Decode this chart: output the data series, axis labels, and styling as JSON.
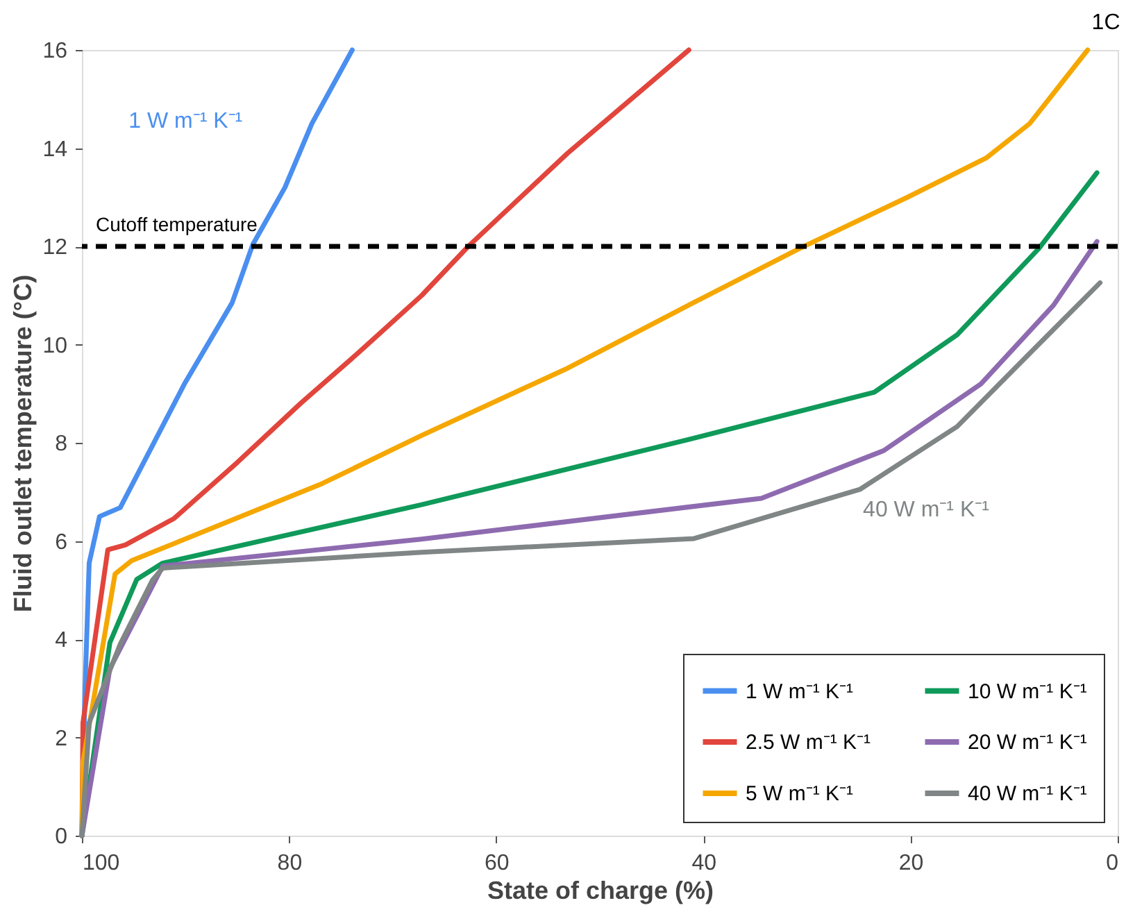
{
  "chart_data": {
    "type": "line",
    "title": "1C",
    "xlabel": "State of charge (%)",
    "ylabel": "Fluid outlet temperature (°C)",
    "xlim": [
      100,
      0
    ],
    "ylim": [
      0,
      16
    ],
    "xticks": [
      100,
      80,
      60,
      40,
      20,
      0
    ],
    "yticks": [
      0,
      2,
      4,
      6,
      8,
      10,
      12,
      14,
      16
    ],
    "grid": false,
    "legend": "bottom right",
    "line_style": "solid",
    "marker": "none",
    "series": [
      {
        "name": "1 W m⁻¹ K⁻¹",
        "color": "#4a8ff0",
        "x": [
          100,
          99.7,
          99.3,
          98.3,
          96.3,
          90.1,
          85.5,
          83.5,
          80.4,
          77.8,
          73.9
        ],
        "values": [
          0,
          3,
          5.55,
          6.5,
          6.68,
          9.2,
          10.85,
          12.04,
          13.2,
          14.5,
          16
        ]
      },
      {
        "name": "2.5 W m⁻¹ K⁻¹",
        "color": "#e2453c",
        "x": [
          100,
          99.9,
          97.5,
          95.8,
          91.1,
          85,
          78.9,
          73.7,
          67.2,
          62.7,
          53.1,
          41.4
        ],
        "values": [
          0,
          2.3,
          5.82,
          5.92,
          6.46,
          7.6,
          8.8,
          9.76,
          11.0,
          12.0,
          13.9,
          16
        ]
      },
      {
        "name": "5 W m⁻¹ K⁻¹",
        "color": "#f5a700",
        "x": [
          100,
          99.9,
          96.8,
          95.2,
          87,
          76.8,
          67.2,
          53.1,
          40.9,
          30.6,
          20.3,
          12.7,
          8.5,
          2.9
        ],
        "values": [
          0,
          1.5,
          5.33,
          5.6,
          6.3,
          7.17,
          8.15,
          9.52,
          10.86,
          11.97,
          13.0,
          13.8,
          14.5,
          16
        ]
      },
      {
        "name": "10 W m⁻¹ K⁻¹",
        "color": "#0f9a5a",
        "x": [
          100,
          97.3,
          94.7,
          92.2,
          81.9,
          67.2,
          41.4,
          23.5,
          15.5,
          7.6,
          2.0
        ],
        "values": [
          0,
          3.93,
          5.22,
          5.55,
          6.04,
          6.74,
          8.07,
          9.03,
          10.2,
          11.96,
          13.5
        ]
      },
      {
        "name": "20 W m⁻¹ K⁻¹",
        "color": "#8e6bb0",
        "x": [
          100,
          97.3,
          92.2,
          67.2,
          34.4,
          22.6,
          13.2,
          6.2,
          2.0
        ],
        "values": [
          0,
          3.4,
          5.49,
          6.04,
          6.87,
          7.84,
          9.2,
          10.8,
          12.1
        ]
      },
      {
        "name": "40 W m⁻¹ K⁻¹",
        "color": "#808585",
        "x": [
          100,
          99.3,
          96.3,
          93.2,
          92.2,
          67.2,
          40.9,
          24.9,
          15.5,
          8.5,
          1.7
        ],
        "values": [
          0,
          2.3,
          3.9,
          5.2,
          5.45,
          5.77,
          6.05,
          7.05,
          8.33,
          9.82,
          11.26
        ]
      }
    ],
    "ref_lines": [
      {
        "axis": "y",
        "value": 12,
        "label": "Cutoff temperature",
        "color": "#000000",
        "line_style": "dashed"
      }
    ],
    "annotations": [
      "1 W m⁻¹ K⁻¹",
      "40 W m⁻¹ K⁻¹"
    ]
  }
}
